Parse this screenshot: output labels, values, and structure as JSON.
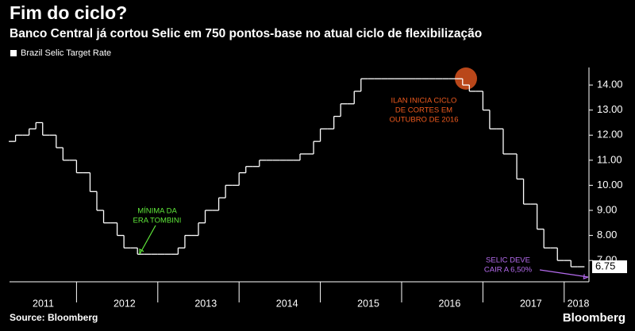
{
  "chart_data": {
    "type": "step",
    "title": "Fim do ciclo?",
    "subtitle": "Banco Central já cortou Selic em 750 pontos-base no atual ciclo de flexibilização",
    "series": [
      {
        "name": "Brazil Selic Target Rate",
        "color": "#ffffff",
        "values": [
          11.75,
          12,
          12,
          12.25,
          12.5,
          12,
          12,
          11.5,
          11,
          11,
          10.5,
          10.5,
          9.75,
          9,
          8.5,
          8.5,
          8,
          7.5,
          7.5,
          7.25,
          7.25,
          7.25,
          7.25,
          7.25,
          7.25,
          7.5,
          8,
          8,
          8.5,
          9,
          9,
          9.5,
          10,
          10,
          10.5,
          10.75,
          10.75,
          11,
          11,
          11,
          11,
          11,
          11,
          11.25,
          11.25,
          11.75,
          12.25,
          12.25,
          12.75,
          13.25,
          13.25,
          13.75,
          14.25,
          14.25,
          14.25,
          14.25,
          14.25,
          14.25,
          14.25,
          14.25,
          14.25,
          14.25,
          14.25,
          14.25,
          14.25,
          14.25,
          14.25,
          14,
          13.75,
          13.75,
          13,
          12.25,
          12.25,
          11.25,
          11.25,
          10.25,
          9.25,
          9.25,
          8.25,
          7.5,
          7.5,
          7,
          7,
          6.75,
          6.75
        ]
      }
    ],
    "categories": [
      null,
      null,
      null,
      null,
      "2011",
      null,
      null,
      null,
      null,
      null,
      null,
      null,
      null,
      null,
      null,
      null,
      "2012",
      null,
      null,
      null,
      null,
      null,
      null,
      null,
      null,
      null,
      null,
      null,
      "2013",
      null,
      null,
      null,
      null,
      null,
      null,
      null,
      null,
      null,
      null,
      null,
      "2014",
      null,
      null,
      null,
      null,
      null,
      null,
      null,
      null,
      null,
      null,
      null,
      "2015",
      null,
      null,
      null,
      null,
      null,
      null,
      null,
      null,
      null,
      null,
      null,
      "2016",
      null,
      null,
      null,
      null,
      null,
      null,
      null,
      null,
      null,
      null,
      null,
      "2017",
      null,
      null,
      null,
      null,
      null,
      null,
      "2018",
      null
    ],
    "ylim": [
      6.15,
      14.7
    ],
    "yticks": [
      {
        "value": 7,
        "label": "7.00"
      },
      {
        "value": 8,
        "label": "8.00"
      },
      {
        "value": 9,
        "label": "9.00"
      },
      {
        "value": 10,
        "label": "10.00"
      },
      {
        "value": 11,
        "label": "11.00"
      },
      {
        "value": 12,
        "label": "12.00"
      },
      {
        "value": 13,
        "label": "13.00"
      },
      {
        "value": 14,
        "label": "14.00"
      }
    ],
    "annotations": [
      {
        "text": [
          "MÍNIMA DA",
          "ERA TOMBINI"
        ],
        "color": "#5fe83a"
      },
      {
        "text": [
          "ILAN INICIA CICLO",
          "DE CORTES EM",
          "OUTUBRO DE 2016"
        ],
        "color": "#ef5a1e"
      },
      {
        "text": [
          "SELIC DEVE",
          "CAIR A 6,50%"
        ],
        "color": "#b66cf0"
      }
    ],
    "source": "Source: Bloomberg",
    "brand": "Bloomberg"
  }
}
